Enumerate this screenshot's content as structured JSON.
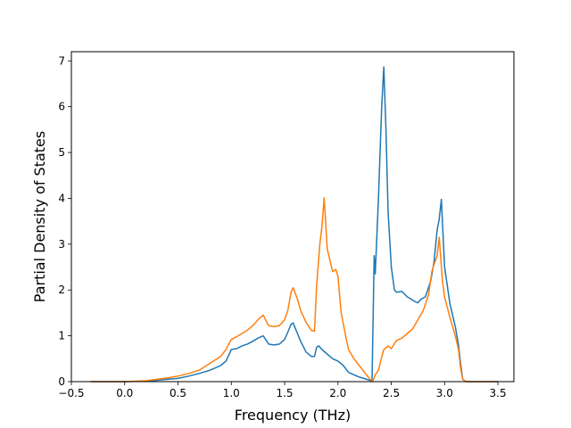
{
  "chart_data": {
    "type": "line",
    "xlabel": "Frequency (THz)",
    "ylabel": "Partial Density of States",
    "xlim": [
      -0.5,
      3.65
    ],
    "ylim": [
      0,
      7.2
    ],
    "xticks": [
      -0.5,
      0.0,
      0.5,
      1.0,
      1.5,
      2.0,
      2.5,
      3.0,
      3.5
    ],
    "xtick_labels": [
      "−0.5",
      "0.0",
      "0.5",
      "1.0",
      "1.5",
      "2.0",
      "2.5",
      "3.0",
      "3.5"
    ],
    "yticks": [
      0,
      1,
      2,
      3,
      4,
      5,
      6,
      7
    ],
    "ytick_labels": [
      "0",
      "1",
      "2",
      "3",
      "4",
      "5",
      "6",
      "7"
    ],
    "grid": false,
    "legend": "none",
    "series": [
      {
        "color": "#1f77b4",
        "x": [
          -0.32,
          0.0,
          0.2,
          0.3,
          0.4,
          0.5,
          0.6,
          0.7,
          0.8,
          0.9,
          0.95,
          1.0,
          1.05,
          1.1,
          1.15,
          1.2,
          1.25,
          1.3,
          1.35,
          1.4,
          1.45,
          1.5,
          1.53,
          1.56,
          1.58,
          1.62,
          1.65,
          1.7,
          1.75,
          1.78,
          1.8,
          1.82,
          1.85,
          1.9,
          1.95,
          2.0,
          2.05,
          2.1,
          2.2,
          2.3,
          2.32,
          2.34,
          2.35,
          2.38,
          2.41,
          2.43,
          2.45,
          2.47,
          2.5,
          2.53,
          2.55,
          2.6,
          2.65,
          2.7,
          2.72,
          2.75,
          2.78,
          2.82,
          2.87,
          2.9,
          2.93,
          2.95,
          2.97,
          3.0,
          3.05,
          3.1,
          3.13,
          3.15,
          3.17,
          3.2,
          3.5
        ],
        "y": [
          0,
          0.0,
          0.01,
          0.03,
          0.05,
          0.07,
          0.12,
          0.18,
          0.25,
          0.35,
          0.45,
          0.7,
          0.72,
          0.78,
          0.82,
          0.88,
          0.95,
          1.0,
          0.82,
          0.8,
          0.82,
          0.92,
          1.08,
          1.25,
          1.28,
          1.05,
          0.88,
          0.65,
          0.55,
          0.55,
          0.75,
          0.78,
          0.7,
          0.6,
          0.5,
          0.45,
          0.35,
          0.2,
          0.1,
          0.03,
          0.02,
          2.75,
          2.35,
          4.0,
          6.0,
          6.87,
          5.5,
          3.7,
          2.5,
          2.0,
          1.95,
          1.97,
          1.85,
          1.78,
          1.75,
          1.72,
          1.8,
          1.85,
          2.2,
          2.6,
          3.3,
          3.55,
          3.98,
          2.5,
          1.7,
          1.2,
          0.8,
          0.4,
          0.05,
          0.0,
          0
        ]
      },
      {
        "color": "#ff7f0e",
        "x": [
          -0.32,
          0.0,
          0.2,
          0.3,
          0.4,
          0.5,
          0.6,
          0.7,
          0.8,
          0.9,
          0.95,
          1.0,
          1.05,
          1.1,
          1.15,
          1.2,
          1.25,
          1.3,
          1.35,
          1.4,
          1.45,
          1.5,
          1.53,
          1.56,
          1.58,
          1.62,
          1.65,
          1.7,
          1.75,
          1.78,
          1.8,
          1.83,
          1.85,
          1.87,
          1.9,
          1.95,
          1.98,
          2.0,
          2.03,
          2.08,
          2.1,
          2.15,
          2.2,
          2.25,
          2.3,
          2.33,
          2.35,
          2.38,
          2.4,
          2.43,
          2.47,
          2.5,
          2.55,
          2.6,
          2.65,
          2.7,
          2.75,
          2.8,
          2.85,
          2.88,
          2.9,
          2.93,
          2.95,
          2.98,
          3.0,
          3.05,
          3.1,
          3.13,
          3.15,
          3.17,
          3.2,
          3.5
        ],
        "y": [
          0,
          0.0,
          0.02,
          0.05,
          0.08,
          0.12,
          0.18,
          0.25,
          0.4,
          0.55,
          0.7,
          0.92,
          0.98,
          1.05,
          1.12,
          1.22,
          1.35,
          1.45,
          1.22,
          1.2,
          1.22,
          1.35,
          1.55,
          1.95,
          2.05,
          1.8,
          1.55,
          1.3,
          1.12,
          1.1,
          2.1,
          3.0,
          3.4,
          4.01,
          2.9,
          2.4,
          2.45,
          2.3,
          1.5,
          0.9,
          0.7,
          0.5,
          0.35,
          0.2,
          0.05,
          0.02,
          0.15,
          0.25,
          0.45,
          0.7,
          0.78,
          0.72,
          0.9,
          0.95,
          1.05,
          1.15,
          1.35,
          1.55,
          1.9,
          2.4,
          2.55,
          2.75,
          3.15,
          2.2,
          1.85,
          1.4,
          1.0,
          0.7,
          0.3,
          0.05,
          0.0,
          0
        ]
      }
    ]
  }
}
